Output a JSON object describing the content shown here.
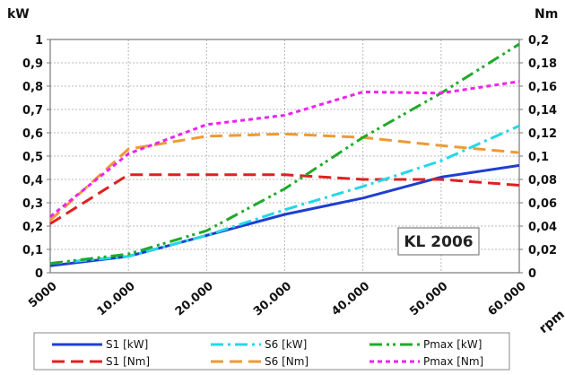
{
  "chart_data": {
    "type": "line",
    "x_unit": "rpm",
    "y_left_unit": "kW",
    "y_right_unit": "Nm",
    "x_categories": [
      "5000",
      "10.000",
      "20.000",
      "30.000",
      "40.000",
      "50.000",
      "60.000"
    ],
    "y_left_ticks": [
      "0",
      "0,1",
      "0,2",
      "0,3",
      "0,4",
      "0,5",
      "0,6",
      "0,7",
      "0,8",
      "0,9",
      "1"
    ],
    "y_right_ticks": [
      "0",
      "0,02",
      "0,04",
      "0,06",
      "0,08",
      "0,1",
      "0,12",
      "0,14",
      "0,16",
      "0,18",
      "0,2"
    ],
    "ylim_left": [
      0,
      1
    ],
    "ylim_right": [
      0,
      0.2
    ],
    "grid": true,
    "legend_position": "bottom",
    "annotation": "KL 2006",
    "series": [
      {
        "name": "S1 [kW]",
        "axis": "left",
        "color": "#1f3fcf",
        "style": "solid",
        "values": [
          0.03,
          0.07,
          0.16,
          0.25,
          0.32,
          0.41,
          0.46
        ]
      },
      {
        "name": "S1 [Nm]",
        "axis": "right",
        "color": "#e02020",
        "style": "dash",
        "values": [
          0.042,
          0.084,
          0.084,
          0.084,
          0.08,
          0.08,
          0.075
        ]
      },
      {
        "name": "S6 [kW]",
        "axis": "left",
        "color": "#22d8e8",
        "style": "dashdot",
        "values": [
          0.04,
          0.07,
          0.16,
          0.27,
          0.37,
          0.48,
          0.63
        ]
      },
      {
        "name": "S6 [Nm]",
        "axis": "right",
        "color": "#ee9a35",
        "style": "dash",
        "values": [
          0.045,
          0.106,
          0.117,
          0.119,
          0.116,
          0.109,
          0.103
        ]
      },
      {
        "name": "Pmax [kW]",
        "axis": "left",
        "color": "#1faa2a",
        "style": "dashdotdot",
        "values": [
          0.04,
          0.08,
          0.18,
          0.36,
          0.58,
          0.77,
          0.98
        ]
      },
      {
        "name": "Pmax [Nm]",
        "axis": "right",
        "color": "#ee22ee",
        "style": "dot",
        "values": [
          0.048,
          0.102,
          0.127,
          0.135,
          0.155,
          0.154,
          0.164
        ]
      }
    ]
  }
}
